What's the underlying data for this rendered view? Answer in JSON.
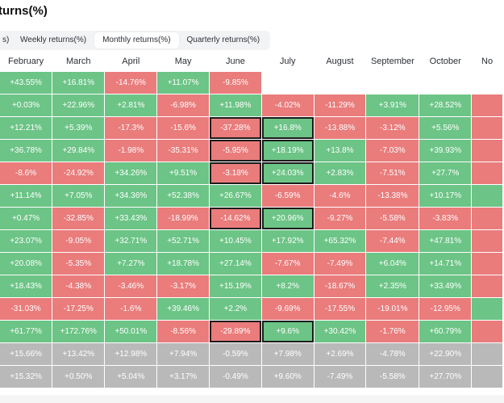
{
  "title": "turns(%)",
  "tabs": [
    {
      "label": "s)",
      "active": false
    },
    {
      "label": "Weekly returns(%)",
      "active": false
    },
    {
      "label": "Monthly returns(%)",
      "active": true
    },
    {
      "label": "Quarterly returns(%)",
      "active": false
    }
  ],
  "columns": [
    "February",
    "March",
    "April",
    "May",
    "June",
    "July",
    "August",
    "September",
    "October",
    "No"
  ],
  "colors": {
    "positive": "#6cc486",
    "negative": "#ea7c7c",
    "summary": "#b9b9b9",
    "highlight_border": "#1c1c1c"
  },
  "rows": [
    [
      "+43.55%",
      "+16.81%",
      "-14.76%",
      "+11.07%",
      "-9.85%",
      "",
      "",
      "",
      "",
      ""
    ],
    [
      "+0.03%",
      "+22.96%",
      "+2.81%",
      "-6.98%",
      "+11.98%",
      "-4.02%",
      "-11.29%",
      "+3.91%",
      "+28.52%",
      ""
    ],
    [
      "+12.21%",
      "+5.39%",
      "-17.3%",
      "-15.6%",
      "-37.28%",
      "+16.8%",
      "-13.88%",
      "-3.12%",
      "+5.56%",
      ""
    ],
    [
      "+36.78%",
      "+29.84%",
      "-1.98%",
      "-35.31%",
      "-5.95%",
      "+18.19%",
      "+13.8%",
      "-7.03%",
      "+39.93%",
      ""
    ],
    [
      "-8.6%",
      "-24.92%",
      "+34.26%",
      "+9.51%",
      "-3.18%",
      "+24.03%",
      "+2.83%",
      "-7.51%",
      "+27.7%",
      ""
    ],
    [
      "+11.14%",
      "+7.05%",
      "+34.36%",
      "+52.38%",
      "+26.67%",
      "-6.59%",
      "-4.6%",
      "-13.38%",
      "+10.17%",
      ""
    ],
    [
      "+0.47%",
      "-32.85%",
      "+33.43%",
      "-18.99%",
      "-14.62%",
      "+20.96%",
      "-9.27%",
      "-5.58%",
      "-3.83%",
      ""
    ],
    [
      "+23.07%",
      "-9.05%",
      "+32.71%",
      "+52.71%",
      "+10.45%",
      "+17.92%",
      "+65.32%",
      "-7.44%",
      "+47.81%",
      ""
    ],
    [
      "+20.08%",
      "-5.35%",
      "+7.27%",
      "+18.78%",
      "+27.14%",
      "-7.67%",
      "-7.49%",
      "+6.04%",
      "+14.71%",
      ""
    ],
    [
      "+18.43%",
      "-4.38%",
      "-3.46%",
      "-3.17%",
      "+15.19%",
      "+8.2%",
      "-18.67%",
      "+2.35%",
      "+33.49%",
      ""
    ],
    [
      "-31.03%",
      "-17.25%",
      "-1.6%",
      "+39.46%",
      "+2.2%",
      "-9.69%",
      "-17.55%",
      "-19.01%",
      "-12.95%",
      ""
    ],
    [
      "+61.77%",
      "+172.76%",
      "+50.01%",
      "-8.56%",
      "-29.89%",
      "+9.6%",
      "+30.42%",
      "-1.76%",
      "+60.79%",
      ""
    ]
  ],
  "row_signs": [
    [
      "+",
      "+",
      "-",
      "+",
      "-",
      "x",
      "x",
      "x",
      "x",
      "x"
    ],
    [
      "+",
      "+",
      "+",
      "-",
      "+",
      "-",
      "-",
      "+",
      "+",
      "-"
    ],
    [
      "+",
      "+",
      "-",
      "-",
      "-",
      "+",
      "-",
      "-",
      "+",
      "-"
    ],
    [
      "+",
      "+",
      "-",
      "-",
      "-",
      "+",
      "+",
      "-",
      "+",
      "-"
    ],
    [
      "-",
      "-",
      "+",
      "+",
      "-",
      "+",
      "+",
      "-",
      "+",
      "-"
    ],
    [
      "+",
      "+",
      "+",
      "+",
      "+",
      "-",
      "-",
      "-",
      "+",
      "+"
    ],
    [
      "+",
      "-",
      "+",
      "-",
      "-",
      "+",
      "-",
      "-",
      "-",
      "-"
    ],
    [
      "+",
      "-",
      "+",
      "+",
      "+",
      "+",
      "+",
      "-",
      "+",
      "-"
    ],
    [
      "+",
      "-",
      "+",
      "+",
      "+",
      "-",
      "-",
      "+",
      "+",
      "-"
    ],
    [
      "+",
      "-",
      "-",
      "-",
      "+",
      "+",
      "-",
      "+",
      "+",
      "-"
    ],
    [
      "-",
      "-",
      "-",
      "+",
      "+",
      "-",
      "-",
      "-",
      "-",
      "+"
    ],
    [
      "+",
      "+",
      "+",
      "-",
      "-",
      "+",
      "+",
      "-",
      "+",
      "-"
    ]
  ],
  "highlighted": [
    [
      2,
      4
    ],
    [
      2,
      5
    ],
    [
      3,
      4
    ],
    [
      3,
      5
    ],
    [
      4,
      4
    ],
    [
      4,
      5
    ],
    [
      6,
      4
    ],
    [
      6,
      5
    ],
    [
      11,
      4
    ],
    [
      11,
      5
    ]
  ],
  "summary_rows": [
    [
      "+15.66%",
      "+13.42%",
      "+12.98%",
      "+7.94%",
      "-0.59%",
      "+7.98%",
      "+2.69%",
      "-4.78%",
      "+22.90%",
      ""
    ],
    [
      "+15.32%",
      "+0.50%",
      "+5.04%",
      "+3.17%",
      "-0.49%",
      "+9.60%",
      "-7.49%",
      "-5.58%",
      "+27.70%",
      ""
    ]
  ]
}
